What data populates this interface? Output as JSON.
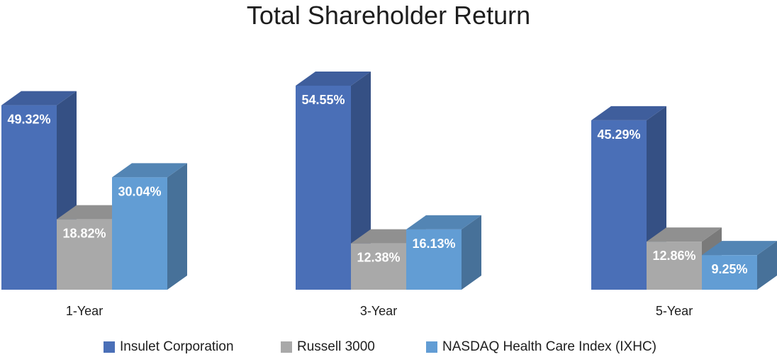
{
  "chart_data": {
    "type": "bar",
    "title": "Total Shareholder Return",
    "categories": [
      "1-Year",
      "3-Year",
      "5-Year"
    ],
    "series": [
      {
        "name": "Insulet Corporation",
        "values": [
          49.32,
          54.55,
          45.29
        ],
        "labels": [
          "49.32%",
          "54.55%",
          "45.29%"
        ],
        "color": "#4a6fb7"
      },
      {
        "name": "Russell 3000",
        "values": [
          18.82,
          12.38,
          12.86
        ],
        "labels": [
          "18.82%",
          "12.38%",
          "12.86%"
        ],
        "color": "#a9a9a9"
      },
      {
        "name": "NASDAQ Health Care Index (IXHC)",
        "values": [
          30.04,
          16.13,
          9.25
        ],
        "labels": [
          "30.04%",
          "16.13%",
          "9.25%"
        ],
        "color": "#629dd4"
      }
    ],
    "ylim": [
      0,
      60
    ],
    "grid": false,
    "legend_position": "bottom",
    "style": "3d-bar"
  }
}
